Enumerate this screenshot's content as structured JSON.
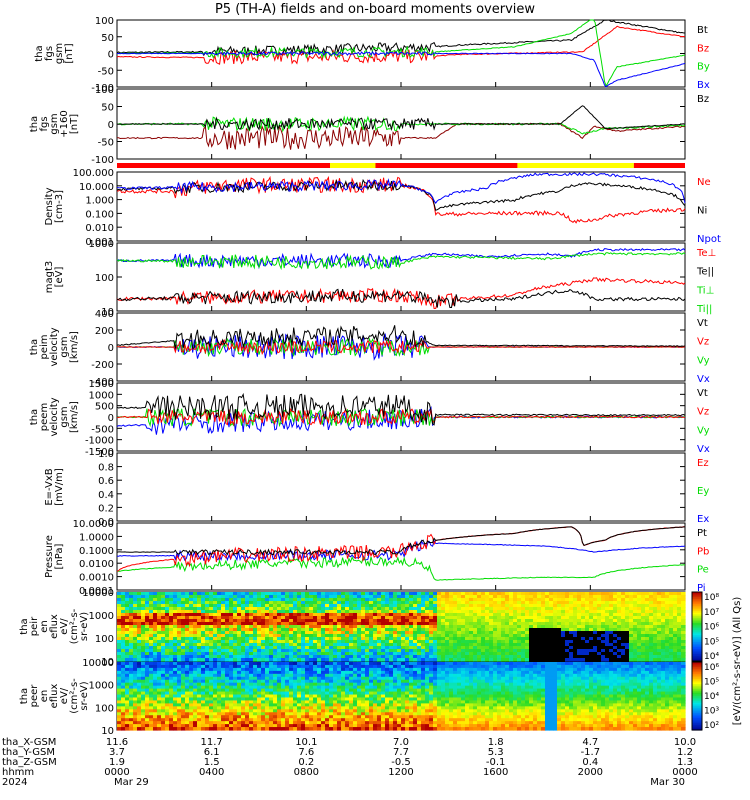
{
  "title": "P5 (TH-A) fields and on-board moments overview",
  "colors": {
    "black": "#000000",
    "red": "#ff0000",
    "green": "#00dd00",
    "blue": "#0000ff",
    "darkred": "#8b0000",
    "yellow": "#ffff00"
  },
  "panels": [
    {
      "id": "fgs-gsm",
      "ylabel": [
        "tha",
        "fgs",
        "gsm",
        "[nT]"
      ],
      "log": false,
      "ylim": [
        -100,
        100
      ],
      "ticks": [
        "100",
        "50",
        "0",
        "-50",
        "-100"
      ],
      "legend": [
        {
          "t": "Bt",
          "c": "black"
        },
        {
          "t": "Bz",
          "c": "red"
        },
        {
          "t": "By",
          "c": "green"
        },
        {
          "t": "Bx",
          "c": "blue"
        }
      ]
    },
    {
      "id": "fgs-gse",
      "ylabel": [
        "tha",
        "fgs",
        "gsm",
        "+160",
        "[nT]"
      ],
      "log": false,
      "ylim": [
        -150,
        150
      ],
      "ticks": [
        "100",
        "50",
        "0",
        "-50",
        "-100"
      ],
      "legend": [
        {
          "t": "Bz",
          "c": "black"
        }
      ]
    },
    {
      "id": "density",
      "ylabel": [
        "Density",
        "[cm-3]"
      ],
      "log": true,
      "ylim": [
        0.0007,
        150
      ],
      "ticks": [
        "100.000",
        "10.000",
        "1.000",
        "0.100",
        "0.010",
        "0.001"
      ],
      "legend": [
        {
          "t": "Ne",
          "c": "red"
        },
        {
          "t": "Ni",
          "c": "black"
        },
        {
          "t": "Npot",
          "c": "blue"
        }
      ]
    },
    {
      "id": "temperature",
      "ylabel": [
        "magt3",
        "[eV]"
      ],
      "log": true,
      "ylim": [
        6,
        6000
      ],
      "ticks": [
        "1000",
        "100",
        "10"
      ],
      "ticks_top": "1000",
      "legend": [
        {
          "t": "Te⊥",
          "c": "red"
        },
        {
          "t": "Te||",
          "c": "black"
        },
        {
          "t": "Ti⊥",
          "c": "green"
        },
        {
          "t": "Ti||",
          "c": "green"
        }
      ]
    },
    {
      "id": "ion-velocity",
      "ylabel": [
        "tha",
        "peim",
        "velocity",
        "gsm",
        "[km/s]"
      ],
      "log": false,
      "ylim": [
        -400,
        400
      ],
      "ticks": [
        "400",
        "200",
        "0",
        "-200",
        "-400"
      ],
      "legend": [
        {
          "t": "Vt",
          "c": "black"
        },
        {
          "t": "Vz",
          "c": "red"
        },
        {
          "t": "Vy",
          "c": "green"
        },
        {
          "t": "Vx",
          "c": "blue"
        }
      ]
    },
    {
      "id": "electron-velocity",
      "ylabel": [
        "tha",
        "peem",
        "velocity",
        "gsm",
        "[km/s]"
      ],
      "log": false,
      "ylim": [
        -1500,
        1500
      ],
      "ticks": [
        "1500",
        "1000",
        "500",
        "0",
        "-500",
        "-1000",
        "-1500"
      ],
      "legend": [
        {
          "t": "Vt",
          "c": "black"
        },
        {
          "t": "Vz",
          "c": "red"
        },
        {
          "t": "Vy",
          "c": "green"
        },
        {
          "t": "Vx",
          "c": "blue"
        }
      ]
    },
    {
      "id": "efield",
      "ylabel": [
        "E=-VxB",
        "[mV/m]"
      ],
      "log": false,
      "ylim": [
        0,
        1
      ],
      "ticks": [
        "1.0",
        "0.8",
        "0.6",
        "0.4",
        "0.2",
        "0.0"
      ],
      "legend": [
        {
          "t": "Ez",
          "c": "red"
        },
        {
          "t": "Ey",
          "c": "green"
        },
        {
          "t": "Ex",
          "c": "blue"
        }
      ]
    },
    {
      "id": "pressure",
      "ylabel": [
        "Pressure",
        "[nPa]"
      ],
      "log": true,
      "ylim": [
        0.0001,
        20
      ],
      "ticks": [
        "10.0000",
        "1.0000",
        "0.1000",
        "0.0100",
        "0.0010",
        "0.0001"
      ],
      "legend": [
        {
          "t": "Pt",
          "c": "black"
        },
        {
          "t": "Pb",
          "c": "red"
        },
        {
          "t": "Pe",
          "c": "green"
        },
        {
          "t": "Pi",
          "c": "blue"
        }
      ]
    },
    {
      "id": "ion-spectrogram",
      "ylabel": [
        "tha",
        "peir",
        "en",
        "eflux",
        "eV/",
        "(cm²-s-",
        "sr-eV)"
      ],
      "log": true,
      "ylim": [
        5,
        30000
      ],
      "ticks": [
        "10000",
        "1000",
        "100",
        "10"
      ]
    },
    {
      "id": "electron-spectrogram",
      "ylabel": [
        "tha",
        "peer",
        "en",
        "eflux",
        "eV/",
        "(cm²-s-",
        "sr-eV)"
      ],
      "log": true,
      "ylim": [
        5,
        30000
      ],
      "ticks": [
        "10000",
        "1000",
        "100",
        "10"
      ]
    }
  ],
  "colorbar": {
    "ticks_top": [
      "10⁸",
      "10⁷",
      "10⁶",
      "10⁵",
      "10⁴"
    ],
    "ticks_bottom": [
      "10⁶",
      "10⁵",
      "10⁴",
      "10³",
      "10²"
    ],
    "label": "[eV/(cm²-s-sr-eV)] (All Qs)"
  },
  "region_bar": [
    {
      "from": 0,
      "to": 0.375,
      "c": "red"
    },
    {
      "from": 0.375,
      "to": 0.455,
      "c": "yellow"
    },
    {
      "from": 0.455,
      "to": 0.705,
      "c": "red"
    },
    {
      "from": 0.705,
      "to": 0.91,
      "c": "yellow"
    },
    {
      "from": 0.91,
      "to": 1,
      "c": "red"
    }
  ],
  "xaxis": {
    "rows": [
      {
        "label": "tha_X-GSM",
        "values": [
          "11.6",
          "11.7",
          "10.1",
          "7.0",
          "1.8",
          "4.7",
          "10.0"
        ]
      },
      {
        "label": "tha_Y-GSM",
        "values": [
          "3.7",
          "6.1",
          "7.6",
          "7.7",
          "5.3",
          "-1.7",
          "1.2"
        ]
      },
      {
        "label": "tha_Z-GSM",
        "values": [
          "1.9",
          "1.5",
          "0.2",
          "-0.5",
          "-0.1",
          "0.4",
          "1.3"
        ]
      },
      {
        "label": "hhmm",
        "values": [
          "0000",
          "0400",
          "0800",
          "1200",
          "1600",
          "2000",
          "0000"
        ]
      },
      {
        "label": "2024",
        "values": [
          "Mar 29",
          "",
          "",
          "",
          "",
          "",
          "Mar 30"
        ]
      }
    ]
  },
  "chart_data": {
    "type": "line",
    "x": [
      "0000",
      "0400",
      "0800",
      "1200",
      "1600",
      "2000",
      "0000"
    ],
    "panels": [
      {
        "name": "fgs gsm",
        "series": [
          {
            "name": "Bt",
            "values": [
              2,
              5,
              15,
              20,
              80,
              75,
              60
            ]
          },
          {
            "name": "Bz",
            "values": [
              -10,
              -15,
              -18,
              -5,
              0,
              30,
              50
            ]
          },
          {
            "name": "By",
            "values": [
              0,
              5,
              15,
              20,
              60,
              -30,
              -10
            ]
          },
          {
            "name": "Bx",
            "values": [
              0,
              0,
              -10,
              -5,
              0,
              60,
              -60
            ]
          }
        ]
      },
      {
        "name": "Density",
        "series": [
          {
            "name": "Ne",
            "values": [
              5,
              15,
              15,
              0.08,
              0.1,
              0.03,
              0.2
            ]
          },
          {
            "name": "Ni",
            "values": [
              7,
              15,
              15,
              0.2,
              3,
              2,
              0.1
            ]
          },
          {
            "name": "Npot",
            "values": [
              8,
              15,
              15,
              0.3,
              60,
              20,
              0.3
            ]
          }
        ]
      },
      {
        "name": "Pressure",
        "series": [
          {
            "name": "Pt",
            "values": [
              0.1,
              0.1,
              0.1,
              0.8,
              3,
              0.9,
              10
            ]
          },
          {
            "name": "Pb",
            "values": [
              0.003,
              0.1,
              0.1,
              0.8,
              3,
              0.9,
              10
            ]
          },
          {
            "name": "Pe",
            "values": [
              0.003,
              0.01,
              0.02,
              0.0006,
              0.001,
              0.001,
              0.01
            ]
          },
          {
            "name": "Pi",
            "values": [
              0.05,
              0.06,
              0.06,
              0.5,
              0.3,
              0.1,
              0.3
            ]
          }
        ]
      }
    ]
  }
}
